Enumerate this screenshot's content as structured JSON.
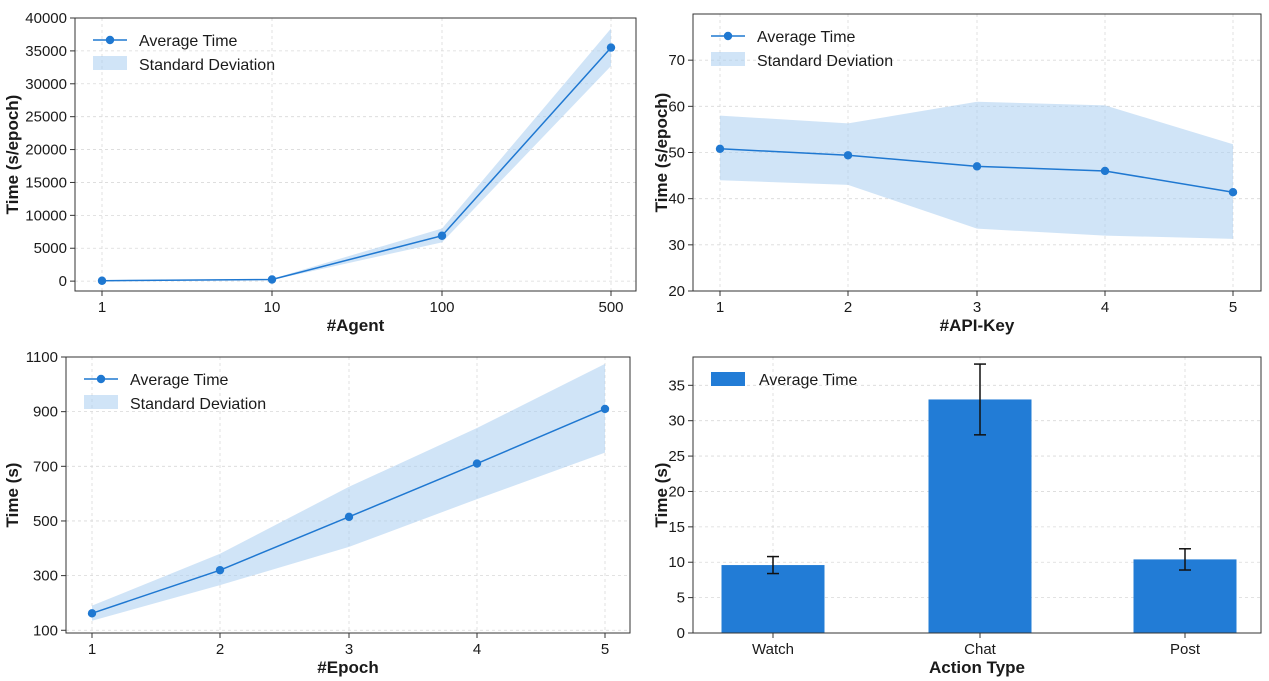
{
  "colors": {
    "line": "#1f78d1",
    "band": "#a9cdf0",
    "bar": "#227cd6",
    "grid": "#d9d9d9",
    "axis": "#333333",
    "errorbar": "#111111"
  },
  "chart_data": [
    {
      "type": "line",
      "x_scale": "log",
      "x": [
        1,
        10,
        100,
        500
      ],
      "x_tick_labels": [
        "1",
        "10",
        "100",
        "500"
      ],
      "series": [
        {
          "name": "Average Time",
          "values": [
            60,
            250,
            6900,
            35500
          ]
        },
        {
          "name": "Standard Deviation",
          "lower": [
            30,
            180,
            5900,
            32700
          ],
          "upper": [
            100,
            350,
            8000,
            38400
          ]
        }
      ],
      "xlabel": "#Agent",
      "ylabel": "Time (s/epoch)",
      "ylim": [
        -1500,
        40000
      ],
      "y_ticks": [
        0,
        5000,
        10000,
        15000,
        20000,
        25000,
        30000,
        35000,
        40000
      ],
      "y_tick_labels": [
        "0",
        "5000",
        "10000",
        "15000",
        "20000",
        "25000",
        "30000",
        "35000",
        "40000"
      ],
      "legend": [
        "Average Time",
        "Standard Deviation"
      ],
      "legend_position": "upper-left",
      "grid": true
    },
    {
      "type": "line",
      "x": [
        1,
        2,
        3,
        4,
        5
      ],
      "x_tick_labels": [
        "1",
        "2",
        "3",
        "4",
        "5"
      ],
      "series": [
        {
          "name": "Average Time",
          "values": [
            50.8,
            49.4,
            47.0,
            46.0,
            41.4
          ]
        },
        {
          "name": "Standard Deviation",
          "lower": [
            44.0,
            43.0,
            33.5,
            32.0,
            31.3
          ],
          "upper": [
            58.0,
            56.3,
            61.0,
            60.2,
            51.8
          ]
        }
      ],
      "xlabel": "#API-Key",
      "ylabel": "Time (s/epoch)",
      "ylim": [
        20,
        80
      ],
      "y_ticks": [
        20,
        30,
        40,
        50,
        60,
        70
      ],
      "y_tick_labels": [
        "20",
        "30",
        "40",
        "50",
        "60",
        "70"
      ],
      "legend": [
        "Average Time",
        "Standard Deviation"
      ],
      "legend_position": "upper-left",
      "grid": true
    },
    {
      "type": "line",
      "x": [
        1,
        2,
        3,
        4,
        5
      ],
      "x_tick_labels": [
        "1",
        "2",
        "3",
        "4",
        "5"
      ],
      "series": [
        {
          "name": "Average Time",
          "values": [
            162,
            320,
            515,
            710,
            910
          ]
        },
        {
          "name": "Standard Deviation",
          "lower": [
            135,
            265,
            405,
            580,
            750
          ],
          "upper": [
            190,
            380,
            625,
            840,
            1075
          ]
        }
      ],
      "xlabel": "#Epoch",
      "ylabel": "Time (s)",
      "ylim": [
        90,
        1100
      ],
      "y_ticks": [
        100,
        300,
        500,
        700,
        900,
        1100
      ],
      "y_tick_labels": [
        "100",
        "300",
        "500",
        "700",
        "900",
        "1100"
      ],
      "legend": [
        "Average Time",
        "Standard Deviation"
      ],
      "legend_position": "upper-left",
      "grid": true
    },
    {
      "type": "bar",
      "categories": [
        "Watch",
        "Chat",
        "Post"
      ],
      "series": [
        {
          "name": "Average Time",
          "values": [
            9.6,
            33.0,
            10.4
          ],
          "error": [
            1.2,
            5.0,
            1.5
          ]
        }
      ],
      "xlabel": "Action Type",
      "ylabel": "Time (s)",
      "ylim": [
        0,
        39
      ],
      "y_ticks": [
        0,
        5,
        10,
        15,
        20,
        25,
        30,
        35
      ],
      "y_tick_labels": [
        "0",
        "5",
        "10",
        "15",
        "20",
        "25",
        "30",
        "35"
      ],
      "legend": [
        "Average Time"
      ],
      "legend_position": "upper-left",
      "grid": true
    }
  ]
}
